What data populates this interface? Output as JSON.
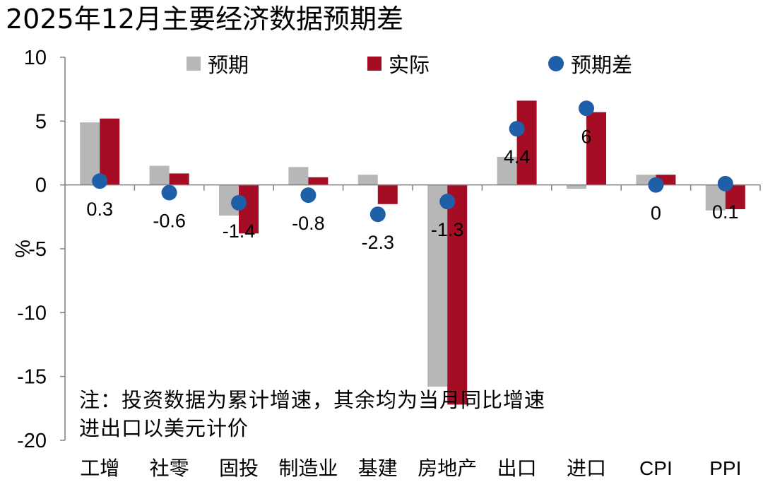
{
  "title": "2025年12月主要经济数据预期差",
  "note": {
    "line1": "注：投资数据为累计增速，其余均为当月同比增速",
    "line2": "进出口以美元计价"
  },
  "colors": {
    "expected": "#b7b7b7",
    "actual": "#a50d24",
    "diff": "#1f5fa8"
  },
  "chart_data": {
    "type": "bar",
    "ylabel": "%",
    "ylim": [
      -20,
      10
    ],
    "yticks": [
      10,
      5,
      0,
      -5,
      -10,
      -15,
      -20
    ],
    "ytick_labels": [
      "10",
      "5",
      "0",
      "-5",
      "-10",
      "-15",
      "-20"
    ],
    "grid": false,
    "legend_position": "top",
    "categories": [
      "工增",
      "社零",
      "固投",
      "制造业",
      "基建",
      "房地产",
      "出口",
      "进口",
      "CPI",
      "PPI"
    ],
    "series": [
      {
        "name": "预期",
        "kind": "bar",
        "values": [
          4.9,
          1.5,
          -2.4,
          1.4,
          0.8,
          -15.8,
          2.2,
          -0.3,
          0.8,
          -2.0
        ]
      },
      {
        "name": "实际",
        "kind": "bar",
        "values": [
          5.2,
          0.9,
          -3.8,
          0.6,
          -1.5,
          -17.2,
          6.6,
          5.7,
          0.8,
          -1.9
        ]
      },
      {
        "name": "预期差",
        "kind": "scatter",
        "values": [
          0.3,
          -0.6,
          -1.4,
          -0.8,
          -2.3,
          -1.3,
          4.4,
          6,
          0,
          0.1
        ],
        "labels": [
          "0.3",
          "-0.6",
          "-1.4",
          "-0.8",
          "-2.3",
          "-1.3",
          "4.4",
          "6",
          "0",
          "0.1"
        ]
      }
    ]
  }
}
